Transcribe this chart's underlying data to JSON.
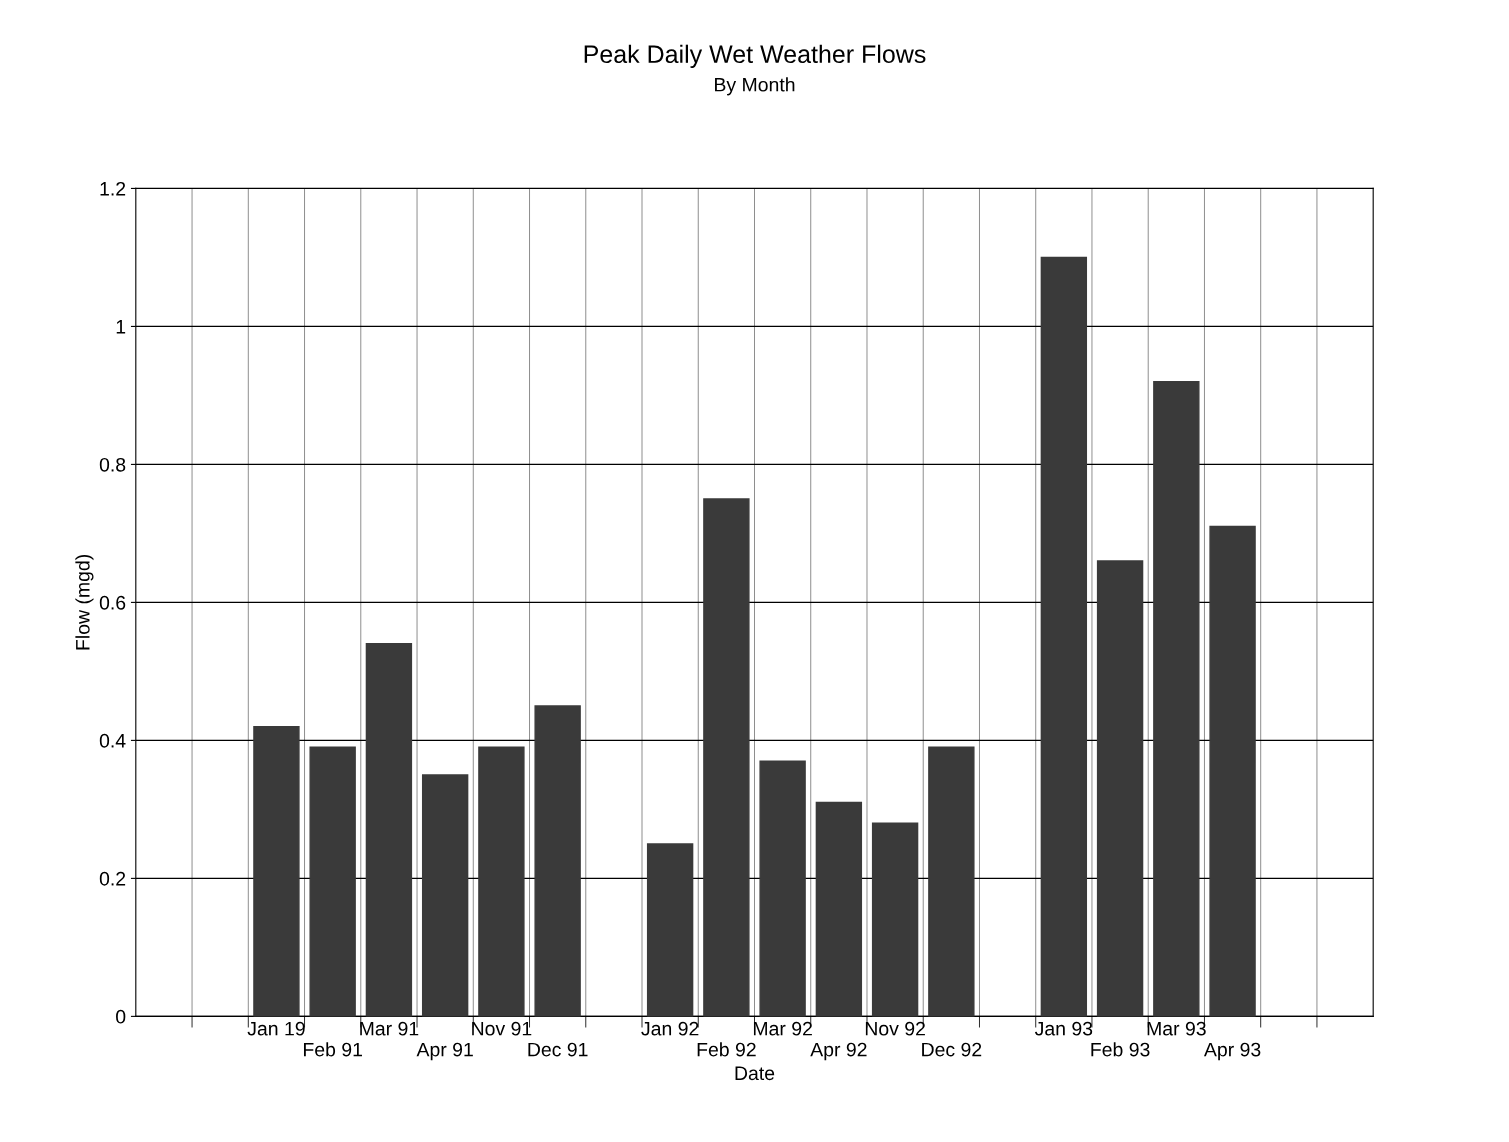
{
  "chart_data": {
    "type": "bar",
    "title": "Peak Daily Wet Weather Flows",
    "subtitle": "By Month",
    "xlabel": "Date",
    "ylabel": "Flow (mgd)",
    "categories": [
      null,
      null,
      "Jan 19",
      "Feb 91",
      "Mar 91",
      "Apr 91",
      "Nov 91",
      "Dec 91",
      null,
      "Jan 92",
      "Feb 92",
      "Mar 92",
      "Apr 92",
      "Nov 92",
      "Dec 92",
      null,
      "Jan 93",
      "Feb 93",
      "Mar 93",
      "Apr 93",
      null,
      null
    ],
    "values": [
      null,
      null,
      0.42,
      0.39,
      0.54,
      0.35,
      0.39,
      0.45,
      null,
      0.25,
      0.75,
      0.37,
      0.31,
      0.28,
      0.39,
      null,
      1.1,
      0.66,
      0.92,
      0.71,
      null,
      null
    ],
    "color": "#3a3a3a",
    "ylim": [
      0,
      1.2
    ],
    "yticks": [
      0,
      0.2,
      0.4,
      0.6,
      0.8,
      1,
      1.2
    ],
    "grid": true,
    "legend": false
  }
}
